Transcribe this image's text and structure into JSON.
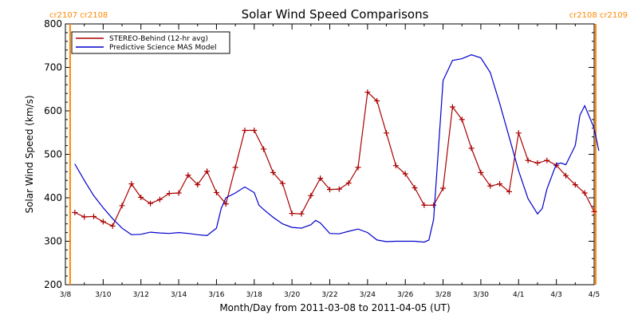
{
  "chart_data": {
    "type": "line",
    "title": "Solar Wind Speed Comparisons",
    "xlabel": "Month/Day from 2011-03-08 to 2011-04-05 (UT)",
    "ylabel": "Solar Wind Speed (km/s)",
    "ylim": [
      200,
      800
    ],
    "xlim": [
      "2011-03-08",
      "2011-04-05"
    ],
    "yticks": [
      "200",
      "300",
      "400",
      "500",
      "600",
      "700",
      "800"
    ],
    "xticks": [
      {
        "date": "2011-03-08",
        "label": "3/8"
      },
      {
        "date": "2011-03-10",
        "label": "3/10"
      },
      {
        "date": "2011-03-12",
        "label": "3/12"
      },
      {
        "date": "2011-03-14",
        "label": "3/14"
      },
      {
        "date": "2011-03-16",
        "label": "3/16"
      },
      {
        "date": "2011-03-18",
        "label": "3/18"
      },
      {
        "date": "2011-03-20",
        "label": "3/20"
      },
      {
        "date": "2011-03-22",
        "label": "3/22"
      },
      {
        "date": "2011-03-24",
        "label": "3/24"
      },
      {
        "date": "2011-03-26",
        "label": "3/26"
      },
      {
        "date": "2011-03-28",
        "label": "3/28"
      },
      {
        "date": "2011-03-30",
        "label": "3/30"
      },
      {
        "date": "2011-04-01",
        "label": "4/1"
      },
      {
        "date": "2011-04-03",
        "label": "4/3"
      },
      {
        "date": "2011-04-05",
        "label": "4/5"
      }
    ],
    "legend_position": "top-left",
    "series": [
      {
        "name": "STEREO-Behind (12-hr avg)",
        "color": "#aa0000",
        "marker": "plus",
        "points": [
          [
            "2011-03-08 12:00",
            366
          ],
          [
            "2011-03-09 00:00",
            356
          ],
          [
            "2011-03-09 12:00",
            357
          ],
          [
            "2011-03-10 00:00",
            345
          ],
          [
            "2011-03-10 12:00",
            335
          ],
          [
            "2011-03-11 00:00",
            382
          ],
          [
            "2011-03-11 12:00",
            432
          ],
          [
            "2011-03-12 00:00",
            401
          ],
          [
            "2011-03-12 12:00",
            387
          ],
          [
            "2011-03-13 00:00",
            396
          ],
          [
            "2011-03-13 12:00",
            410
          ],
          [
            "2011-03-14 00:00",
            411
          ],
          [
            "2011-03-14 12:00",
            452
          ],
          [
            "2011-03-15 00:00",
            430
          ],
          [
            "2011-03-15 12:00",
            461
          ],
          [
            "2011-03-16 00:00",
            412
          ],
          [
            "2011-03-16 12:00",
            386
          ],
          [
            "2011-03-17 00:00",
            470
          ],
          [
            "2011-03-17 12:00",
            555
          ],
          [
            "2011-03-18 00:00",
            555
          ],
          [
            "2011-03-18 12:00",
            512
          ],
          [
            "2011-03-19 00:00",
            458
          ],
          [
            "2011-03-19 12:00",
            433
          ],
          [
            "2011-03-20 00:00",
            364
          ],
          [
            "2011-03-20 12:00",
            363
          ],
          [
            "2011-03-21 00:00",
            405
          ],
          [
            "2011-03-21 12:00",
            445
          ],
          [
            "2011-03-22 00:00",
            419
          ],
          [
            "2011-03-22 12:00",
            420
          ],
          [
            "2011-03-23 00:00",
            434
          ],
          [
            "2011-03-23 12:00",
            470
          ],
          [
            "2011-03-24 00:00",
            643
          ],
          [
            "2011-03-24 12:00",
            623
          ],
          [
            "2011-03-25 00:00",
            549
          ],
          [
            "2011-03-25 12:00",
            474
          ],
          [
            "2011-03-26 00:00",
            455
          ],
          [
            "2011-03-26 12:00",
            423
          ],
          [
            "2011-03-27 00:00",
            383
          ],
          [
            "2011-03-27 12:00",
            383
          ],
          [
            "2011-03-28 00:00",
            422
          ],
          [
            "2011-03-28 12:00",
            609
          ],
          [
            "2011-03-29 00:00",
            580
          ],
          [
            "2011-03-29 12:00",
            514
          ],
          [
            "2011-03-30 00:00",
            458
          ],
          [
            "2011-03-30 12:00",
            427
          ],
          [
            "2011-03-31 00:00",
            432
          ],
          [
            "2011-03-31 12:00",
            414
          ],
          [
            "2011-04-01 00:00",
            549
          ],
          [
            "2011-04-01 12:00",
            486
          ],
          [
            "2011-04-02 00:00",
            480
          ],
          [
            "2011-04-02 12:00",
            486
          ],
          [
            "2011-04-03 00:00",
            475
          ],
          [
            "2011-04-03 12:00",
            451
          ],
          [
            "2011-04-04 00:00",
            430
          ],
          [
            "2011-04-04 12:00",
            411
          ],
          [
            "2011-04-05 00:00",
            368
          ]
        ]
      },
      {
        "name": "Predictive Science MAS Model",
        "color": "#0000cc",
        "marker": "none",
        "points": [
          [
            "2011-03-08 12:00",
            478
          ],
          [
            "2011-03-09 00:00",
            440
          ],
          [
            "2011-03-09 12:00",
            405
          ],
          [
            "2011-03-10 00:00",
            377
          ],
          [
            "2011-03-10 12:00",
            352
          ],
          [
            "2011-03-11 00:00",
            330
          ],
          [
            "2011-03-11 12:00",
            315
          ],
          [
            "2011-03-12 00:00",
            316
          ],
          [
            "2011-03-12 12:00",
            321
          ],
          [
            "2011-03-13 00:00",
            319
          ],
          [
            "2011-03-13 12:00",
            318
          ],
          [
            "2011-03-14 00:00",
            320
          ],
          [
            "2011-03-14 12:00",
            318
          ],
          [
            "2011-03-15 00:00",
            315
          ],
          [
            "2011-03-15 12:00",
            313
          ],
          [
            "2011-03-16 00:00",
            330
          ],
          [
            "2011-03-16 06:00",
            375
          ],
          [
            "2011-03-16 12:00",
            400
          ],
          [
            "2011-03-17 00:00",
            411
          ],
          [
            "2011-03-17 12:00",
            425
          ],
          [
            "2011-03-18 00:00",
            412
          ],
          [
            "2011-03-18 06:00",
            383
          ],
          [
            "2011-03-18 12:00",
            373
          ],
          [
            "2011-03-19 00:00",
            355
          ],
          [
            "2011-03-19 12:00",
            340
          ],
          [
            "2011-03-20 00:00",
            332
          ],
          [
            "2011-03-20 12:00",
            330
          ],
          [
            "2011-03-21 00:00",
            338
          ],
          [
            "2011-03-21 06:00",
            348
          ],
          [
            "2011-03-21 12:00",
            342
          ],
          [
            "2011-03-22 00:00",
            318
          ],
          [
            "2011-03-22 12:00",
            317
          ],
          [
            "2011-03-23 00:00",
            323
          ],
          [
            "2011-03-23 12:00",
            328
          ],
          [
            "2011-03-24 00:00",
            320
          ],
          [
            "2011-03-24 12:00",
            303
          ],
          [
            "2011-03-25 00:00",
            299
          ],
          [
            "2011-03-25 12:00",
            300
          ],
          [
            "2011-03-26 00:00",
            300
          ],
          [
            "2011-03-26 12:00",
            300
          ],
          [
            "2011-03-27 00:00",
            298
          ],
          [
            "2011-03-27 06:00",
            303
          ],
          [
            "2011-03-27 12:00",
            350
          ],
          [
            "2011-03-28 00:00",
            670
          ],
          [
            "2011-03-28 12:00",
            716
          ],
          [
            "2011-03-29 00:00",
            720
          ],
          [
            "2011-03-29 12:00",
            729
          ],
          [
            "2011-03-30 00:00",
            722
          ],
          [
            "2011-03-30 12:00",
            688
          ],
          [
            "2011-03-31 00:00",
            617
          ],
          [
            "2011-03-31 12:00",
            540
          ],
          [
            "2011-04-01 00:00",
            462
          ],
          [
            "2011-04-01 12:00",
            398
          ],
          [
            "2011-04-02 00:00",
            363
          ],
          [
            "2011-04-02 06:00",
            375
          ],
          [
            "2011-04-02 12:00",
            420
          ],
          [
            "2011-04-03 00:00",
            478
          ],
          [
            "2011-04-03 06:00",
            480
          ],
          [
            "2011-04-03 12:00",
            476
          ],
          [
            "2011-04-04 00:00",
            520
          ],
          [
            "2011-04-04 06:00",
            590
          ],
          [
            "2011-04-04 12:00",
            612
          ],
          [
            "2011-04-05 00:00",
            560
          ],
          [
            "2011-04-05 06:00",
            508
          ]
        ]
      }
    ],
    "carrington_markers": [
      {
        "date": "2011-03-08 06:00",
        "label": "cr2107 cr2108",
        "color": "#ff8800",
        "side": "left"
      },
      {
        "date": "2011-04-05 02:00",
        "label": "cr2108 cr2109",
        "color": "#ff8800",
        "side": "right"
      }
    ]
  }
}
